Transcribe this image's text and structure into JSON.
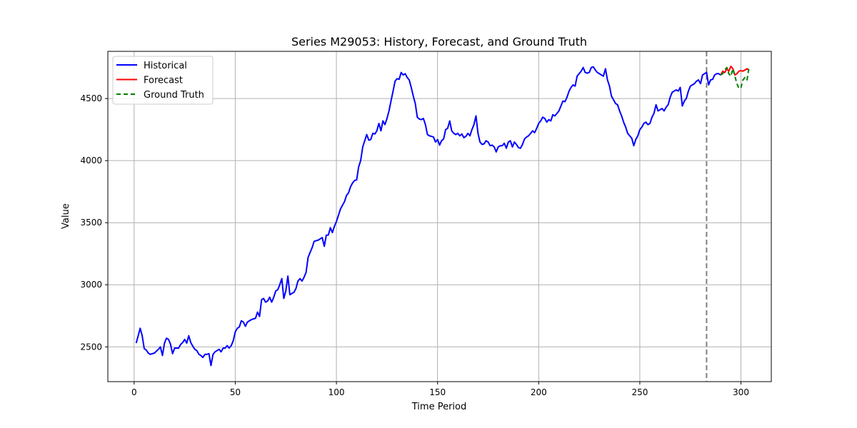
{
  "chart_data": {
    "type": "line",
    "title": "Series M29053: History, Forecast, and Ground Truth",
    "xlabel": "Time Period",
    "ylabel": "Value",
    "xlim": [
      -13,
      315
    ],
    "ylim": [
      2220,
      4880
    ],
    "xticks": [
      0,
      50,
      100,
      150,
      200,
      250,
      300
    ],
    "yticks": [
      2500,
      3000,
      3500,
      4000,
      4500
    ],
    "grid": true,
    "legend_position": "upper left",
    "forecast_start_marker": 283,
    "series": [
      {
        "name": "Historical",
        "color": "#0000ff",
        "style": "solid",
        "points": [
          [
            1,
            2530
          ],
          [
            3,
            2650
          ],
          [
            4,
            2590
          ],
          [
            5,
            2485
          ],
          [
            6,
            2475
          ],
          [
            7,
            2450
          ],
          [
            8,
            2440
          ],
          [
            10,
            2450
          ],
          [
            12,
            2480
          ],
          [
            13,
            2500
          ],
          [
            14,
            2430
          ],
          [
            15,
            2530
          ],
          [
            16,
            2570
          ],
          [
            17,
            2560
          ],
          [
            18,
            2520
          ],
          [
            19,
            2445
          ],
          [
            20,
            2490
          ],
          [
            22,
            2490
          ],
          [
            23,
            2520
          ],
          [
            24,
            2535
          ],
          [
            25,
            2560
          ],
          [
            26,
            2530
          ],
          [
            27,
            2590
          ],
          [
            28,
            2535
          ],
          [
            29,
            2505
          ],
          [
            30,
            2480
          ],
          [
            31,
            2470
          ],
          [
            32,
            2440
          ],
          [
            33,
            2430
          ],
          [
            34,
            2415
          ],
          [
            35,
            2440
          ],
          [
            36,
            2440
          ],
          [
            37,
            2445
          ],
          [
            38,
            2350
          ],
          [
            39,
            2440
          ],
          [
            40,
            2460
          ],
          [
            42,
            2480
          ],
          [
            43,
            2460
          ],
          [
            44,
            2490
          ],
          [
            45,
            2490
          ],
          [
            46,
            2510
          ],
          [
            47,
            2490
          ],
          [
            48,
            2510
          ],
          [
            49,
            2550
          ],
          [
            50,
            2620
          ],
          [
            51,
            2650
          ],
          [
            52,
            2660
          ],
          [
            53,
            2710
          ],
          [
            54,
            2700
          ],
          [
            55,
            2665
          ],
          [
            56,
            2700
          ],
          [
            58,
            2720
          ],
          [
            60,
            2730
          ],
          [
            61,
            2780
          ],
          [
            62,
            2745
          ],
          [
            63,
            2880
          ],
          [
            64,
            2890
          ],
          [
            65,
            2860
          ],
          [
            66,
            2870
          ],
          [
            67,
            2900
          ],
          [
            68,
            2860
          ],
          [
            69,
            2900
          ],
          [
            70,
            2950
          ],
          [
            71,
            2960
          ],
          [
            72,
            3000
          ],
          [
            73,
            3050
          ],
          [
            74,
            2890
          ],
          [
            75,
            2950
          ],
          [
            76,
            3070
          ],
          [
            77,
            2920
          ],
          [
            78,
            2930
          ],
          [
            79,
            2940
          ],
          [
            80,
            2970
          ],
          [
            81,
            3030
          ],
          [
            82,
            3050
          ],
          [
            83,
            3030
          ],
          [
            84,
            3060
          ],
          [
            85,
            3100
          ],
          [
            86,
            3220
          ],
          [
            87,
            3260
          ],
          [
            88,
            3300
          ],
          [
            89,
            3350
          ],
          [
            90,
            3355
          ],
          [
            91,
            3360
          ],
          [
            92,
            3370
          ],
          [
            93,
            3380
          ],
          [
            94,
            3310
          ],
          [
            95,
            3400
          ],
          [
            96,
            3400
          ],
          [
            97,
            3460
          ],
          [
            98,
            3420
          ],
          [
            99,
            3470
          ],
          [
            100,
            3510
          ],
          [
            101,
            3560
          ],
          [
            102,
            3610
          ],
          [
            103,
            3640
          ],
          [
            104,
            3670
          ],
          [
            105,
            3720
          ],
          [
            106,
            3740
          ],
          [
            107,
            3790
          ],
          [
            108,
            3820
          ],
          [
            109,
            3840
          ],
          [
            110,
            3845
          ],
          [
            111,
            3950
          ],
          [
            112,
            4000
          ],
          [
            113,
            4110
          ],
          [
            114,
            4160
          ],
          [
            115,
            4210
          ],
          [
            116,
            4165
          ],
          [
            117,
            4170
          ],
          [
            118,
            4220
          ],
          [
            119,
            4215
          ],
          [
            120,
            4240
          ],
          [
            121,
            4300
          ],
          [
            122,
            4240
          ],
          [
            123,
            4320
          ],
          [
            124,
            4290
          ],
          [
            125,
            4340
          ],
          [
            126,
            4400
          ],
          [
            127,
            4480
          ],
          [
            128,
            4560
          ],
          [
            129,
            4640
          ],
          [
            130,
            4660
          ],
          [
            131,
            4655
          ],
          [
            132,
            4710
          ],
          [
            133,
            4690
          ],
          [
            134,
            4700
          ],
          [
            135,
            4670
          ],
          [
            136,
            4650
          ],
          [
            137,
            4590
          ],
          [
            138,
            4520
          ],
          [
            139,
            4460
          ],
          [
            140,
            4350
          ],
          [
            141,
            4335
          ],
          [
            142,
            4330
          ],
          [
            143,
            4340
          ],
          [
            144,
            4290
          ],
          [
            145,
            4210
          ],
          [
            146,
            4200
          ],
          [
            147,
            4195
          ],
          [
            148,
            4190
          ],
          [
            149,
            4150
          ],
          [
            150,
            4170
          ],
          [
            151,
            4125
          ],
          [
            152,
            4160
          ],
          [
            153,
            4175
          ],
          [
            154,
            4250
          ],
          [
            155,
            4260
          ],
          [
            156,
            4320
          ],
          [
            157,
            4240
          ],
          [
            158,
            4220
          ],
          [
            159,
            4210
          ],
          [
            160,
            4220
          ],
          [
            161,
            4200
          ],
          [
            162,
            4215
          ],
          [
            163,
            4185
          ],
          [
            164,
            4195
          ],
          [
            165,
            4220
          ],
          [
            166,
            4200
          ],
          [
            167,
            4250
          ],
          [
            168,
            4290
          ],
          [
            169,
            4360
          ],
          [
            170,
            4220
          ],
          [
            171,
            4150
          ],
          [
            172,
            4130
          ],
          [
            173,
            4135
          ],
          [
            174,
            4160
          ],
          [
            175,
            4150
          ],
          [
            176,
            4120
          ],
          [
            177,
            4125
          ],
          [
            178,
            4110
          ],
          [
            179,
            4070
          ],
          [
            180,
            4110
          ],
          [
            181,
            4120
          ],
          [
            182,
            4120
          ],
          [
            183,
            4140
          ],
          [
            184,
            4100
          ],
          [
            185,
            4150
          ],
          [
            186,
            4160
          ],
          [
            187,
            4110
          ],
          [
            188,
            4150
          ],
          [
            189,
            4130
          ],
          [
            190,
            4105
          ],
          [
            191,
            4100
          ],
          [
            192,
            4130
          ],
          [
            193,
            4175
          ],
          [
            194,
            4190
          ],
          [
            195,
            4200
          ],
          [
            196,
            4220
          ],
          [
            197,
            4240
          ],
          [
            198,
            4225
          ],
          [
            199,
            4260
          ],
          [
            200,
            4300
          ],
          [
            201,
            4320
          ],
          [
            202,
            4350
          ],
          [
            203,
            4340
          ],
          [
            204,
            4310
          ],
          [
            205,
            4330
          ],
          [
            206,
            4320
          ],
          [
            207,
            4370
          ],
          [
            208,
            4360
          ],
          [
            209,
            4380
          ],
          [
            210,
            4400
          ],
          [
            211,
            4440
          ],
          [
            212,
            4480
          ],
          [
            213,
            4475
          ],
          [
            214,
            4510
          ],
          [
            215,
            4560
          ],
          [
            216,
            4590
          ],
          [
            217,
            4610
          ],
          [
            218,
            4600
          ],
          [
            219,
            4680
          ],
          [
            220,
            4700
          ],
          [
            221,
            4720
          ],
          [
            222,
            4750
          ],
          [
            223,
            4710
          ],
          [
            224,
            4705
          ],
          [
            225,
            4710
          ],
          [
            226,
            4750
          ],
          [
            227,
            4755
          ],
          [
            228,
            4730
          ],
          [
            229,
            4710
          ],
          [
            230,
            4700
          ],
          [
            231,
            4690
          ],
          [
            232,
            4680
          ],
          [
            233,
            4740
          ],
          [
            234,
            4650
          ],
          [
            235,
            4600
          ],
          [
            236,
            4520
          ],
          [
            237,
            4490
          ],
          [
            238,
            4460
          ],
          [
            239,
            4450
          ],
          [
            240,
            4400
          ],
          [
            241,
            4360
          ],
          [
            242,
            4310
          ],
          [
            243,
            4270
          ],
          [
            244,
            4220
          ],
          [
            245,
            4200
          ],
          [
            246,
            4180
          ],
          [
            247,
            4120
          ],
          [
            248,
            4170
          ],
          [
            249,
            4200
          ],
          [
            250,
            4250
          ],
          [
            251,
            4270
          ],
          [
            252,
            4300
          ],
          [
            253,
            4310
          ],
          [
            254,
            4290
          ],
          [
            255,
            4300
          ],
          [
            256,
            4350
          ],
          [
            257,
            4380
          ],
          [
            258,
            4450
          ],
          [
            259,
            4400
          ],
          [
            260,
            4410
          ],
          [
            261,
            4420
          ],
          [
            262,
            4400
          ],
          [
            263,
            4430
          ],
          [
            264,
            4450
          ],
          [
            265,
            4510
          ],
          [
            266,
            4550
          ],
          [
            267,
            4560
          ],
          [
            268,
            4570
          ],
          [
            269,
            4560
          ],
          [
            270,
            4590
          ],
          [
            271,
            4440
          ],
          [
            272,
            4480
          ],
          [
            273,
            4500
          ],
          [
            274,
            4560
          ],
          [
            275,
            4600
          ],
          [
            276,
            4610
          ],
          [
            277,
            4620
          ],
          [
            278,
            4640
          ],
          [
            279,
            4650
          ],
          [
            280,
            4620
          ],
          [
            281,
            4690
          ],
          [
            282,
            4700
          ],
          [
            283,
            4710
          ],
          [
            284,
            4610
          ],
          [
            285,
            4650
          ],
          [
            286,
            4655
          ],
          [
            287,
            4690
          ],
          [
            288,
            4700
          ],
          [
            289,
            4700
          ],
          [
            290,
            4690
          ]
        ]
      },
      {
        "name": "Forecast",
        "color": "#ff0000",
        "style": "solid",
        "points": [
          [
            290,
            4690
          ],
          [
            291,
            4720
          ],
          [
            292,
            4710
          ],
          [
            293,
            4740
          ],
          [
            294,
            4720
          ],
          [
            295,
            4760
          ],
          [
            296,
            4740
          ],
          [
            297,
            4690
          ],
          [
            298,
            4700
          ],
          [
            299,
            4720
          ],
          [
            300,
            4725
          ],
          [
            301,
            4720
          ],
          [
            302,
            4730
          ],
          [
            303,
            4740
          ],
          [
            304,
            4730
          ]
        ]
      },
      {
        "name": "Ground Truth",
        "color": "#008000",
        "style": "dashed",
        "points": [
          [
            290,
            4690
          ],
          [
            291,
            4700
          ],
          [
            292,
            4730
          ],
          [
            293,
            4750
          ],
          [
            294,
            4700
          ],
          [
            295,
            4680
          ],
          [
            296,
            4740
          ],
          [
            297,
            4680
          ],
          [
            298,
            4620
          ],
          [
            299,
            4580
          ],
          [
            300,
            4590
          ],
          [
            301,
            4650
          ],
          [
            302,
            4670
          ],
          [
            303,
            4650
          ],
          [
            304,
            4750
          ]
        ]
      }
    ]
  }
}
